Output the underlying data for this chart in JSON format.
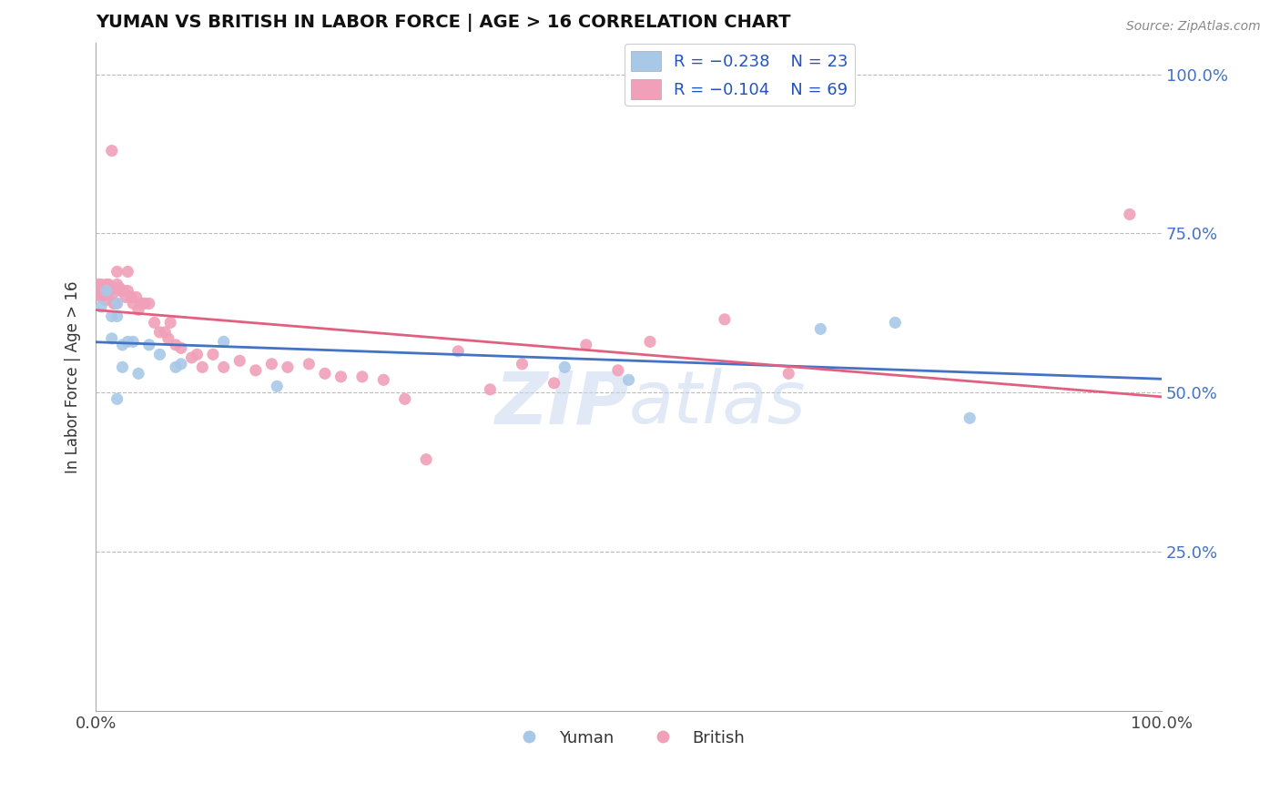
{
  "title": "YUMAN VS BRITISH IN LABOR FORCE | AGE > 16 CORRELATION CHART",
  "source_text": "Source: ZipAtlas.com",
  "ylabel": "In Labor Force | Age > 16",
  "xlim": [
    0.0,
    1.0
  ],
  "ylim": [
    0.0,
    1.05
  ],
  "ytick_labels": [
    "25.0%",
    "50.0%",
    "75.0%",
    "100.0%"
  ],
  "ytick_values": [
    0.25,
    0.5,
    0.75,
    1.0
  ],
  "xtick_labels": [
    "0.0%",
    "100.0%"
  ],
  "xtick_values": [
    0.0,
    1.0
  ],
  "yuman_color": "#A8C8E8",
  "british_color": "#F0A0B8",
  "trend_yuman_color": "#4472C4",
  "trend_british_color": "#E06080",
  "watermark": "ZIPatlas",
  "legend_r_yuman": "R = -0.238",
  "legend_n_yuman": "N = 23",
  "legend_r_british": "R = -0.104",
  "legend_n_british": "N = 69",
  "yuman_x": [
    0.005,
    0.01,
    0.015,
    0.015,
    0.02,
    0.02,
    0.02,
    0.025,
    0.025,
    0.03,
    0.035,
    0.04,
    0.05,
    0.06,
    0.075,
    0.08,
    0.12,
    0.17,
    0.44,
    0.5,
    0.68,
    0.75,
    0.82
  ],
  "yuman_y": [
    0.635,
    0.66,
    0.62,
    0.585,
    0.64,
    0.62,
    0.49,
    0.575,
    0.54,
    0.58,
    0.58,
    0.53,
    0.575,
    0.56,
    0.54,
    0.545,
    0.58,
    0.51,
    0.54,
    0.52,
    0.6,
    0.61,
    0.46
  ],
  "british_x": [
    0.002,
    0.003,
    0.004,
    0.005,
    0.005,
    0.006,
    0.007,
    0.008,
    0.009,
    0.01,
    0.01,
    0.011,
    0.012,
    0.013,
    0.015,
    0.015,
    0.016,
    0.017,
    0.018,
    0.019,
    0.02,
    0.02,
    0.022,
    0.023,
    0.025,
    0.026,
    0.028,
    0.03,
    0.03,
    0.033,
    0.035,
    0.038,
    0.04,
    0.043,
    0.046,
    0.05,
    0.055,
    0.06,
    0.065,
    0.068,
    0.07,
    0.075,
    0.08,
    0.09,
    0.095,
    0.1,
    0.11,
    0.12,
    0.135,
    0.15,
    0.165,
    0.18,
    0.2,
    0.215,
    0.23,
    0.25,
    0.27,
    0.29,
    0.31,
    0.34,
    0.37,
    0.4,
    0.43,
    0.46,
    0.49,
    0.52,
    0.59,
    0.65,
    0.97
  ],
  "british_y": [
    0.67,
    0.655,
    0.66,
    0.67,
    0.65,
    0.655,
    0.655,
    0.66,
    0.645,
    0.67,
    0.66,
    0.655,
    0.67,
    0.66,
    0.88,
    0.65,
    0.665,
    0.64,
    0.64,
    0.64,
    0.69,
    0.67,
    0.665,
    0.66,
    0.66,
    0.66,
    0.65,
    0.69,
    0.66,
    0.65,
    0.64,
    0.65,
    0.63,
    0.64,
    0.64,
    0.64,
    0.61,
    0.595,
    0.595,
    0.585,
    0.61,
    0.575,
    0.57,
    0.555,
    0.56,
    0.54,
    0.56,
    0.54,
    0.55,
    0.535,
    0.545,
    0.54,
    0.545,
    0.53,
    0.525,
    0.525,
    0.52,
    0.49,
    0.395,
    0.565,
    0.505,
    0.545,
    0.515,
    0.575,
    0.535,
    0.58,
    0.615,
    0.53,
    0.78
  ]
}
